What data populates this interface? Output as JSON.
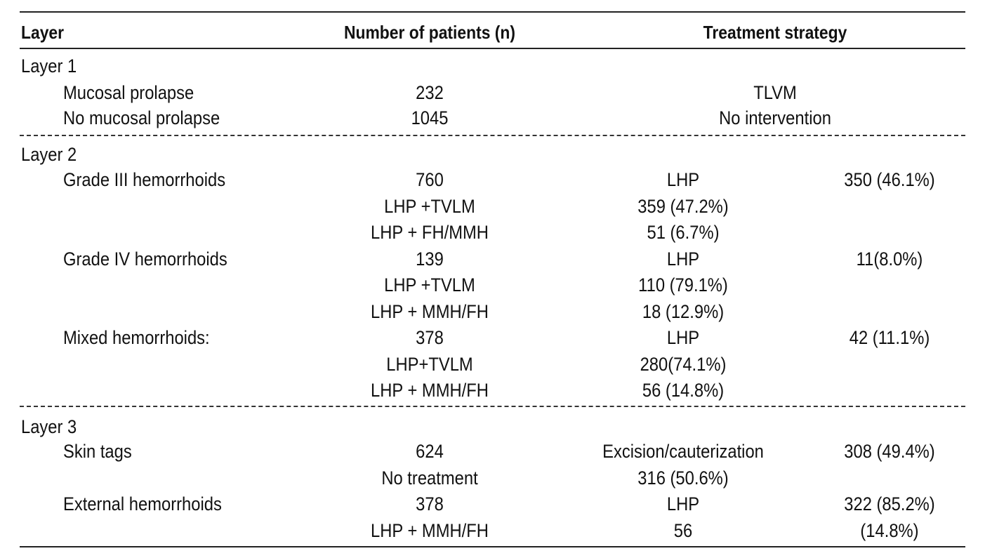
{
  "table": {
    "headers": {
      "layer": "Layer",
      "patients": "Number of patients (n)",
      "strategy": "Treatment strategy"
    },
    "layer1": {
      "title": "Layer 1",
      "rows": [
        {
          "label": "Mucosal prolapse",
          "n": "232",
          "strategy": "TLVM"
        },
        {
          "label": "No mucosal prolapse",
          "n": "1045",
          "strategy": "No intervention"
        }
      ]
    },
    "layer2": {
      "title": "Layer 2",
      "rows": [
        {
          "label": "Grade III hemorrhoids",
          "n": "760",
          "treatment": "LHP",
          "result": "350 (46.1%)"
        },
        {
          "sub": "LHP +TVLM",
          "treatment": "359 (47.2%)"
        },
        {
          "sub": "LHP + FH/MMH",
          "treatment": "51 (6.7%)"
        },
        {
          "label": "Grade IV hemorrhoids",
          "n": "139",
          "treatment": "LHP",
          "result": "11(8.0%)"
        },
        {
          "sub": "LHP +TVLM",
          "treatment": "110 (79.1%)"
        },
        {
          "sub": "LHP + MMH/FH",
          "treatment": "18 (12.9%)"
        },
        {
          "label": "Mixed hemorrhoids:",
          "n": "378",
          "treatment": "LHP",
          "result": "42 (11.1%)"
        },
        {
          "sub": "LHP+TVLM",
          "treatment": "280(74.1%)"
        },
        {
          "sub": "LHP + MMH/FH",
          "treatment": "56 (14.8%)"
        }
      ]
    },
    "layer3": {
      "title": "Layer 3",
      "rows": [
        {
          "label": "Skin tags",
          "n": "624",
          "treatment": "Excision/cauterization",
          "result": "308 (49.4%)"
        },
        {
          "sub": "No treatment",
          "treatment": "316 (50.6%)"
        },
        {
          "label": "External hemorrhoids",
          "n": "378",
          "treatment": "LHP",
          "result": "322 (85.2%)"
        },
        {
          "sub": "LHP + MMH/FH",
          "treatment": "56",
          "result": "(14.8%)"
        }
      ]
    }
  }
}
